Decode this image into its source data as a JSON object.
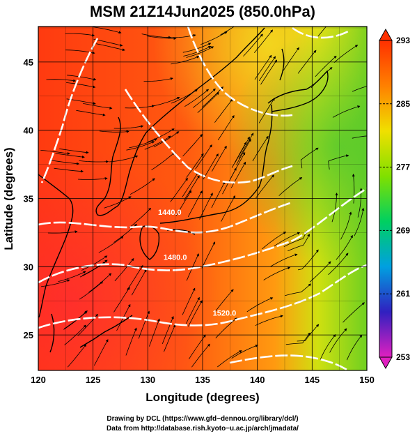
{
  "title": "MSM 21Z14Jun2025 (850.0hPa)",
  "xlabel": "Longitude (degrees)",
  "ylabel": "Latitude  (degrees)",
  "x_ticks": [
    120,
    125,
    130,
    135,
    140,
    145,
    150
  ],
  "y_ticks": [
    25,
    30,
    35,
    40,
    45
  ],
  "xlim": [
    120,
    150
  ],
  "ylim": [
    22.4,
    47.6
  ],
  "colorbar": {
    "ticks": [
      293,
      285,
      277,
      269,
      261,
      253
    ],
    "min": 253,
    "max": 293,
    "colors": [
      "#e020c0",
      "#3020c0",
      "#00a0e0",
      "#00d060",
      "#80e000",
      "#f0e000",
      "#ff8000",
      "#ff3000"
    ]
  },
  "contours": [
    {
      "label": "1440.0",
      "lon": 132.0,
      "lat": 33.8
    },
    {
      "label": "1480.0",
      "lon": 132.5,
      "lat": 30.5
    },
    {
      "label": "1520.0",
      "lon": 137.0,
      "lat": 26.4
    }
  ],
  "credits": {
    "line1": "Drawing by DCL (https://www.gfd−dennou.org/library/dcl/)",
    "line2": "Data from http://database.rish.kyoto−u.ac.jp/arch/jmadata/"
  }
}
